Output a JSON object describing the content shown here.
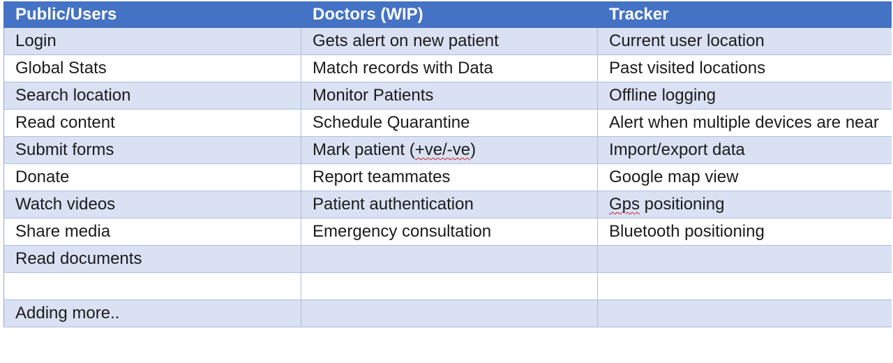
{
  "table": {
    "headers": [
      "Public/Users",
      "Doctors (WIP)",
      "Tracker"
    ],
    "rows": [
      [
        "Login",
        "Gets alert on new patient",
        "Current user location"
      ],
      [
        "Global Stats",
        "Match records with Data",
        "Past visited locations"
      ],
      [
        "Search location",
        "Monitor Patients",
        "Offline logging"
      ],
      [
        "Read content",
        "Schedule Quarantine",
        "Alert when multiple devices are near"
      ],
      [
        "Submit forms",
        "Mark patient (+ve/-ve)",
        "Import/export data"
      ],
      [
        "Donate",
        "Report teammates",
        "Google map view"
      ],
      [
        "Watch videos",
        "Patient authentication",
        "Gps positioning"
      ],
      [
        "Share media",
        "Emergency consultation",
        "Bluetooth positioning"
      ],
      [
        "Read documents",
        "",
        ""
      ],
      [
        "",
        "",
        ""
      ],
      [
        "Adding more..",
        "",
        ""
      ]
    ]
  },
  "colors": {
    "header_bg": "#4472c4",
    "header_text": "#ffffff",
    "band_bg": "#d9e1f2",
    "spellcheck_underline": "#d02020"
  }
}
